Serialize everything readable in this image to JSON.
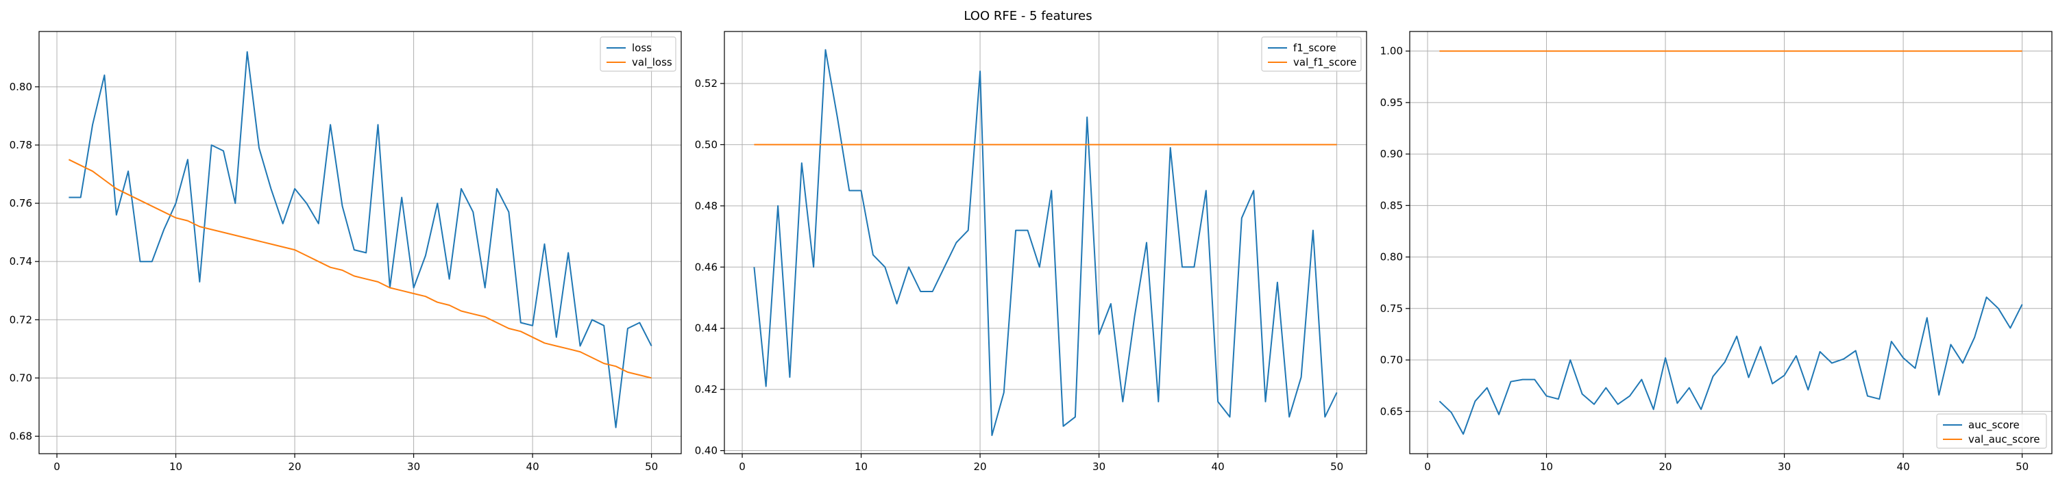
{
  "figure": {
    "title": "LOO RFE - 5 features"
  },
  "chart_data": [
    {
      "type": "line",
      "title": "",
      "xlabel": "",
      "ylabel": "",
      "xlim": [
        -1.5,
        52.5
      ],
      "ylim": [
        0.674,
        0.819
      ],
      "xticks": [
        0,
        10,
        20,
        30,
        40,
        50
      ],
      "yticks": [
        0.68,
        0.7,
        0.72,
        0.74,
        0.76,
        0.78,
        0.8
      ],
      "ytick_labels": [
        "0.68",
        "0.70",
        "0.72",
        "0.74",
        "0.76",
        "0.78",
        "0.80"
      ],
      "grid": true,
      "legend": "top-right",
      "x": [
        1,
        2,
        3,
        4,
        5,
        6,
        7,
        8,
        9,
        10,
        11,
        12,
        13,
        14,
        15,
        16,
        17,
        18,
        19,
        20,
        21,
        22,
        23,
        24,
        25,
        26,
        27,
        28,
        29,
        30,
        31,
        32,
        33,
        34,
        35,
        36,
        37,
        38,
        39,
        40,
        41,
        42,
        43,
        44,
        45,
        46,
        47,
        48,
        49,
        50
      ],
      "series": [
        {
          "name": "loss",
          "color": "#1f77b4",
          "values": [
            0.762,
            0.762,
            0.787,
            0.804,
            0.756,
            0.771,
            0.74,
            0.74,
            0.751,
            0.76,
            0.775,
            0.733,
            0.78,
            0.778,
            0.76,
            0.812,
            0.779,
            0.765,
            0.753,
            0.765,
            0.76,
            0.753,
            0.787,
            0.759,
            0.744,
            0.743,
            0.787,
            0.731,
            0.762,
            0.731,
            0.742,
            0.76,
            0.734,
            0.765,
            0.757,
            0.731,
            0.765,
            0.757,
            0.719,
            0.718,
            0.746,
            0.714,
            0.743,
            0.711,
            0.72,
            0.718,
            0.683,
            0.717,
            0.719,
            0.711
          ]
        },
        {
          "name": "val_loss",
          "color": "#ff7f0e",
          "values": [
            0.775,
            0.773,
            0.771,
            0.768,
            0.765,
            0.763,
            0.761,
            0.759,
            0.757,
            0.755,
            0.754,
            0.752,
            0.751,
            0.75,
            0.749,
            0.748,
            0.747,
            0.746,
            0.745,
            0.744,
            0.742,
            0.74,
            0.738,
            0.737,
            0.735,
            0.734,
            0.733,
            0.731,
            0.73,
            0.729,
            0.728,
            0.726,
            0.725,
            0.723,
            0.722,
            0.721,
            0.719,
            0.717,
            0.716,
            0.714,
            0.712,
            0.711,
            0.71,
            0.709,
            0.707,
            0.705,
            0.704,
            0.702,
            0.701,
            0.7
          ]
        }
      ]
    },
    {
      "type": "line",
      "title": "",
      "xlabel": "",
      "ylabel": "",
      "xlim": [
        -1.5,
        52.5
      ],
      "ylim": [
        0.399,
        0.537
      ],
      "xticks": [
        0,
        10,
        20,
        30,
        40,
        50
      ],
      "yticks": [
        0.4,
        0.42,
        0.44,
        0.46,
        0.48,
        0.5,
        0.52
      ],
      "ytick_labels": [
        "0.40",
        "0.42",
        "0.44",
        "0.46",
        "0.48",
        "0.50",
        "0.52"
      ],
      "grid": true,
      "legend": "top-right",
      "x": [
        1,
        2,
        3,
        4,
        5,
        6,
        7,
        8,
        9,
        10,
        11,
        12,
        13,
        14,
        15,
        16,
        17,
        18,
        19,
        20,
        21,
        22,
        23,
        24,
        25,
        26,
        27,
        28,
        29,
        30,
        31,
        32,
        33,
        34,
        35,
        36,
        37,
        38,
        39,
        40,
        41,
        42,
        43,
        44,
        45,
        46,
        47,
        48,
        49,
        50
      ],
      "series": [
        {
          "name": "f1_score",
          "color": "#1f77b4",
          "values": [
            0.46,
            0.421,
            0.48,
            0.424,
            0.494,
            0.46,
            0.531,
            0.509,
            0.485,
            0.485,
            0.464,
            0.46,
            0.448,
            0.46,
            0.452,
            0.452,
            0.46,
            0.468,
            0.472,
            0.524,
            0.405,
            0.419,
            0.472,
            0.472,
            0.46,
            0.485,
            0.408,
            0.411,
            0.509,
            0.438,
            0.448,
            0.416,
            0.444,
            0.468,
            0.416,
            0.499,
            0.46,
            0.46,
            0.485,
            0.416,
            0.411,
            0.476,
            0.485,
            0.416,
            0.455,
            0.411,
            0.424,
            0.472,
            0.411,
            0.419
          ]
        },
        {
          "name": "val_f1_score",
          "color": "#ff7f0e",
          "values": [
            0.5,
            0.5,
            0.5,
            0.5,
            0.5,
            0.5,
            0.5,
            0.5,
            0.5,
            0.5,
            0.5,
            0.5,
            0.5,
            0.5,
            0.5,
            0.5,
            0.5,
            0.5,
            0.5,
            0.5,
            0.5,
            0.5,
            0.5,
            0.5,
            0.5,
            0.5,
            0.5,
            0.5,
            0.5,
            0.5,
            0.5,
            0.5,
            0.5,
            0.5,
            0.5,
            0.5,
            0.5,
            0.5,
            0.5,
            0.5,
            0.5,
            0.5,
            0.5,
            0.5,
            0.5,
            0.5,
            0.5,
            0.5,
            0.5,
            0.5
          ]
        }
      ]
    },
    {
      "type": "line",
      "title": "",
      "xlabel": "",
      "ylabel": "",
      "xlim": [
        -1.5,
        52.5
      ],
      "ylim": [
        0.609,
        1.019
      ],
      "xticks": [
        0,
        10,
        20,
        30,
        40,
        50
      ],
      "yticks": [
        0.65,
        0.7,
        0.75,
        0.8,
        0.85,
        0.9,
        0.95,
        1.0
      ],
      "ytick_labels": [
        "0.65",
        "0.70",
        "0.75",
        "0.80",
        "0.85",
        "0.90",
        "0.95",
        "1.00"
      ],
      "grid": true,
      "legend": "bottom-right",
      "x": [
        1,
        2,
        3,
        4,
        5,
        6,
        7,
        8,
        9,
        10,
        11,
        12,
        13,
        14,
        15,
        16,
        17,
        18,
        19,
        20,
        21,
        22,
        23,
        24,
        25,
        26,
        27,
        28,
        29,
        30,
        31,
        32,
        33,
        34,
        35,
        36,
        37,
        38,
        39,
        40,
        41,
        42,
        43,
        44,
        45,
        46,
        47,
        48,
        49,
        50
      ],
      "series": [
        {
          "name": "auc_score",
          "color": "#1f77b4",
          "values": [
            0.66,
            0.649,
            0.628,
            0.66,
            0.673,
            0.647,
            0.679,
            0.681,
            0.681,
            0.665,
            0.662,
            0.7,
            0.667,
            0.657,
            0.673,
            0.657,
            0.665,
            0.681,
            0.652,
            0.702,
            0.658,
            0.673,
            0.652,
            0.684,
            0.698,
            0.723,
            0.683,
            0.713,
            0.677,
            0.685,
            0.704,
            0.671,
            0.708,
            0.697,
            0.701,
            0.709,
            0.665,
            0.662,
            0.718,
            0.702,
            0.692,
            0.741,
            0.666,
            0.715,
            0.697,
            0.722,
            0.761,
            0.75,
            0.731,
            0.754
          ]
        },
        {
          "name": "val_auc_score",
          "color": "#ff7f0e",
          "values": [
            1.0,
            1.0,
            1.0,
            1.0,
            1.0,
            1.0,
            1.0,
            1.0,
            1.0,
            1.0,
            1.0,
            1.0,
            1.0,
            1.0,
            1.0,
            1.0,
            1.0,
            1.0,
            1.0,
            1.0,
            1.0,
            1.0,
            1.0,
            1.0,
            1.0,
            1.0,
            1.0,
            1.0,
            1.0,
            1.0,
            1.0,
            1.0,
            1.0,
            1.0,
            1.0,
            1.0,
            1.0,
            1.0,
            1.0,
            1.0,
            1.0,
            1.0,
            1.0,
            1.0,
            1.0,
            1.0,
            1.0,
            1.0,
            1.0,
            1.0
          ]
        }
      ]
    }
  ]
}
